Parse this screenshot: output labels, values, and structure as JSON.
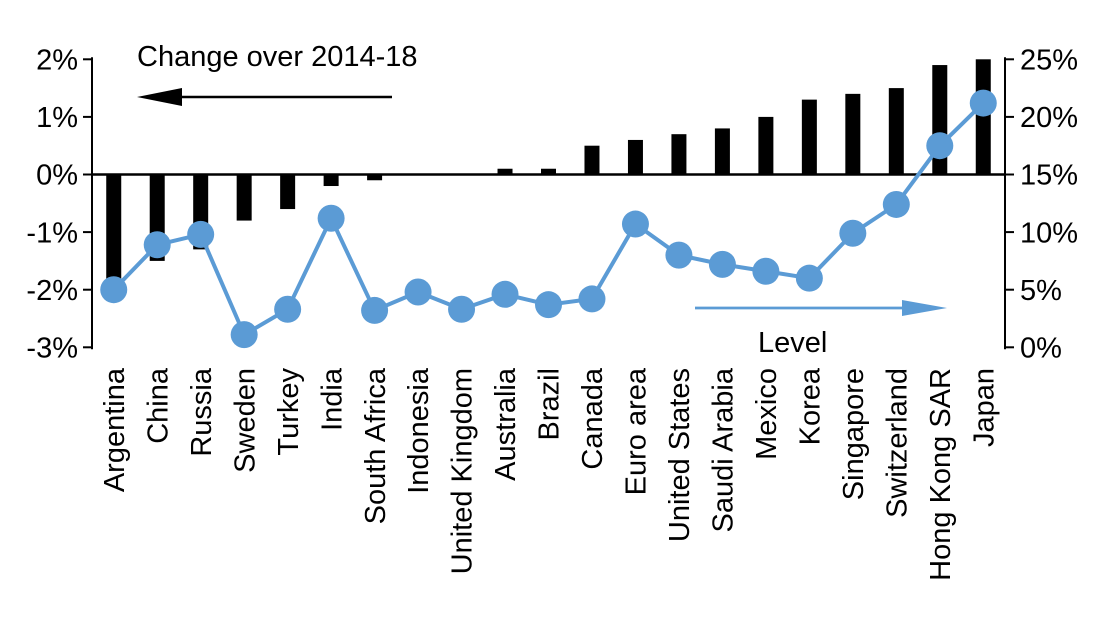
{
  "chart_data": {
    "type": "bar",
    "subtype": "dual-axis bar+line",
    "title": "Change over 2014-18",
    "categories": [
      "Argentina",
      "China",
      "Russia",
      "Sweden",
      "Turkey",
      "India",
      "South Africa",
      "Indonesia",
      "United Kingdom",
      "Australia",
      "Brazil",
      "Canada",
      "Euro area",
      "United States",
      "Saudi Arabia",
      "Mexico",
      "Korea",
      "Singapore",
      "Switzerland",
      "Hong Kong SAR",
      "Japan"
    ],
    "series": [
      {
        "name": "Change over 2014-18",
        "type": "bar",
        "axis": "left",
        "unit": "%",
        "color": "#000000",
        "values": [
          -2.0,
          -1.5,
          -1.3,
          -0.8,
          -0.6,
          -0.2,
          -0.1,
          0.0,
          0.0,
          0.1,
          0.1,
          0.5,
          0.6,
          0.7,
          0.8,
          1.0,
          1.3,
          1.4,
          1.5,
          1.9,
          2.0
        ]
      },
      {
        "name": "Level",
        "type": "line",
        "axis": "right",
        "unit": "%",
        "color": "#5B9BD5",
        "values": [
          5.0,
          8.9,
          9.8,
          1.1,
          3.3,
          11.2,
          3.2,
          4.8,
          3.3,
          4.6,
          3.7,
          4.2,
          10.7,
          8.0,
          7.2,
          6.6,
          6.0,
          9.9,
          12.4,
          17.5,
          21.2
        ]
      }
    ],
    "left_axis": {
      "tick_labels": [
        "2%",
        "1%",
        "0%",
        "-1%",
        "-2%",
        "-3%"
      ],
      "min": -3,
      "max": 2,
      "grid": false
    },
    "right_axis": {
      "tick_labels": [
        "25%",
        "20%",
        "15%",
        "10%",
        "5%",
        "0%"
      ],
      "min": 0,
      "max": 25,
      "grid": false
    },
    "annotations": [
      {
        "label": "Change over 2014-18",
        "arrow": "left",
        "arrow_color": "#000000",
        "text_color": "#000000"
      },
      {
        "label": "Level",
        "arrow": "right",
        "arrow_color": "#5B9BD5",
        "text_color": "#000000"
      }
    ],
    "legend_position": "none",
    "colors": {
      "bar": "#000000",
      "line": "#5B9BD5",
      "background": "#ffffff"
    }
  }
}
